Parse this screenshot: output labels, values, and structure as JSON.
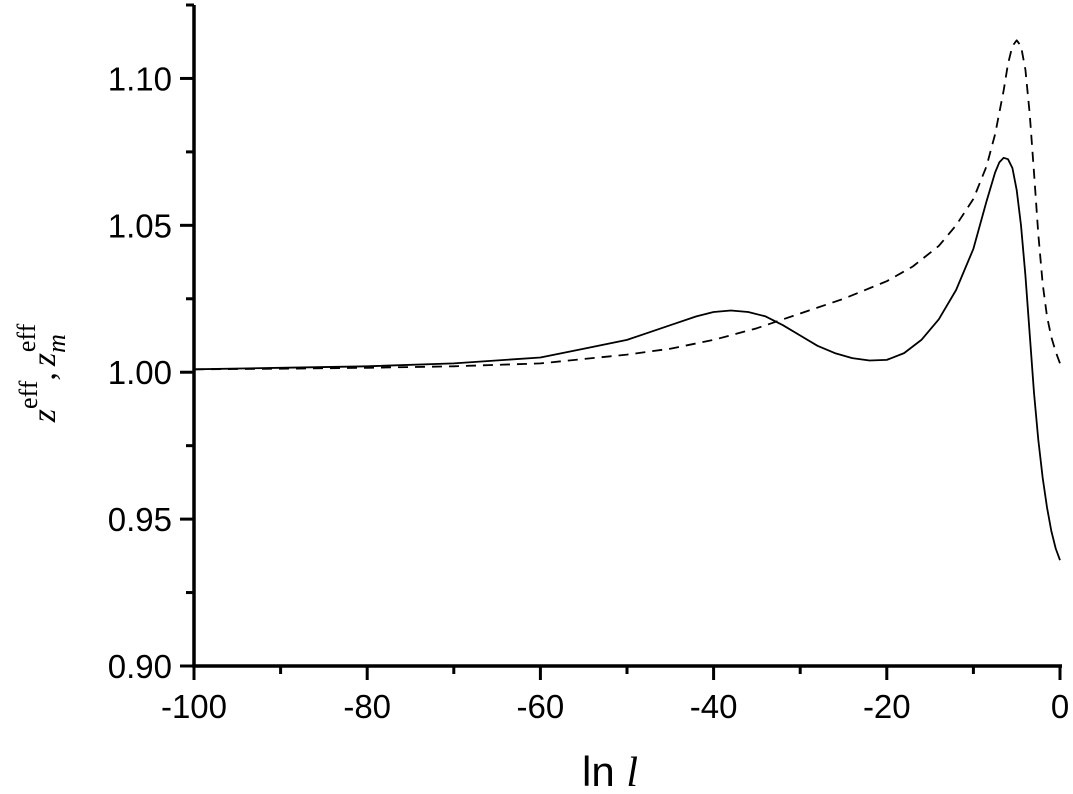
{
  "chart_data": {
    "type": "line",
    "xlabel": {
      "prefix": "ln ",
      "var": "l"
    },
    "ylabel": {
      "sym1": "z",
      "sup1": "eff",
      "sep": ",",
      "sym2": "z",
      "sub2": "m",
      "sup2": "eff"
    },
    "xlim": [
      -100,
      0
    ],
    "ylim": [
      0.9,
      1.125
    ],
    "x_ticks": [
      -100,
      -80,
      -60,
      -40,
      -20,
      0
    ],
    "x_tick_labels": [
      "-100",
      "-80",
      "-60",
      "-40",
      "-20",
      "0"
    ],
    "x_minor_ticks": [
      -90,
      -70,
      -50,
      -30,
      -10
    ],
    "y_ticks": [
      0.9,
      0.95,
      1.0,
      1.05,
      1.1
    ],
    "y_tick_labels": [
      "0.90",
      "0.95",
      "1.00",
      "1.05",
      "1.10"
    ],
    "y_minor_ticks": [
      0.925,
      0.975,
      1.025,
      1.075,
      1.125
    ],
    "grid": false,
    "legend": "none",
    "series": [
      {
        "style": "solid",
        "color": "#000000",
        "points": [
          [
            -100,
            1.001
          ],
          [
            -90,
            1.0015
          ],
          [
            -80,
            1.002
          ],
          [
            -70,
            1.003
          ],
          [
            -60,
            1.005
          ],
          [
            -55,
            1.008
          ],
          [
            -50,
            1.011
          ],
          [
            -45,
            1.016
          ],
          [
            -42,
            1.019
          ],
          [
            -40,
            1.0205
          ],
          [
            -38,
            1.021
          ],
          [
            -36,
            1.0205
          ],
          [
            -34,
            1.019
          ],
          [
            -32,
            1.016
          ],
          [
            -30,
            1.0125
          ],
          [
            -28,
            1.009
          ],
          [
            -26,
            1.0065
          ],
          [
            -24,
            1.0048
          ],
          [
            -22,
            1.004
          ],
          [
            -20,
            1.0042
          ],
          [
            -18,
            1.0065
          ],
          [
            -16,
            1.011
          ],
          [
            -14,
            1.018
          ],
          [
            -12,
            1.028
          ],
          [
            -10,
            1.042
          ],
          [
            -8.5,
            1.058
          ],
          [
            -7.5,
            1.068
          ],
          [
            -7,
            1.0715
          ],
          [
            -6.5,
            1.073
          ],
          [
            -6,
            1.0725
          ],
          [
            -5.5,
            1.0695
          ],
          [
            -5,
            1.062
          ],
          [
            -4.5,
            1.05
          ],
          [
            -4,
            1.033
          ],
          [
            -3.5,
            1.013
          ],
          [
            -3,
            0.993
          ],
          [
            -2.5,
            0.977
          ],
          [
            -2,
            0.964
          ],
          [
            -1.5,
            0.954
          ],
          [
            -1,
            0.946
          ],
          [
            -0.5,
            0.94
          ],
          [
            0,
            0.936
          ]
        ]
      },
      {
        "style": "dashed",
        "color": "#000000",
        "points": [
          [
            -100,
            1.001
          ],
          [
            -90,
            1.0012
          ],
          [
            -80,
            1.0015
          ],
          [
            -70,
            1.002
          ],
          [
            -60,
            1.003
          ],
          [
            -50,
            1.006
          ],
          [
            -45,
            1.008
          ],
          [
            -40,
            1.011
          ],
          [
            -35,
            1.015
          ],
          [
            -30,
            1.02
          ],
          [
            -25,
            1.025
          ],
          [
            -20,
            1.031
          ],
          [
            -17,
            1.036
          ],
          [
            -14,
            1.043
          ],
          [
            -12,
            1.05
          ],
          [
            -10,
            1.059
          ],
          [
            -8.5,
            1.07
          ],
          [
            -7.5,
            1.081
          ],
          [
            -6.5,
            1.096
          ],
          [
            -6,
            1.105
          ],
          [
            -5.5,
            1.111
          ],
          [
            -5,
            1.113
          ],
          [
            -4.5,
            1.111
          ],
          [
            -4,
            1.103
          ],
          [
            -3.5,
            1.088
          ],
          [
            -3,
            1.068
          ],
          [
            -2.5,
            1.047
          ],
          [
            -2,
            1.03
          ],
          [
            -1.5,
            1.019
          ],
          [
            -1,
            1.012
          ],
          [
            -0.5,
            1.007
          ],
          [
            0,
            1.003
          ]
        ]
      }
    ]
  }
}
